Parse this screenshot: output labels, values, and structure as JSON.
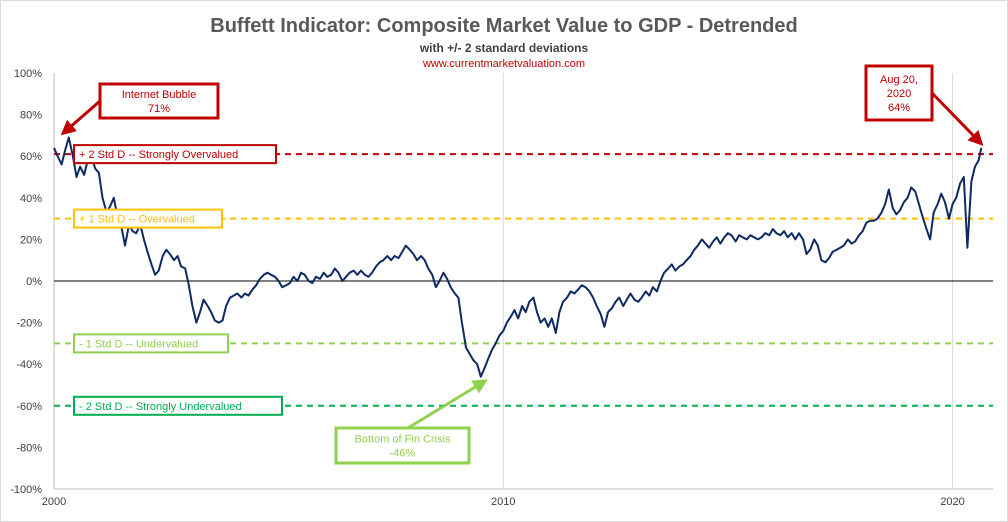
{
  "chart_data": {
    "type": "line",
    "title": "Buffett Indicator: Composite Market Value to GDP - Detrended",
    "subtitle": "with +/- 2 standard deviations",
    "source": "www.currentmarketvaluation.com",
    "xlabel": "",
    "ylabel": "",
    "xlim": [
      2000,
      2020.9
    ],
    "ylim": [
      -100,
      100
    ],
    "x_ticks": [
      2000,
      2010,
      2020
    ],
    "x_tick_labels": [
      "2000",
      "2010",
      "2020"
    ],
    "y_ticks": [
      -100,
      -80,
      -60,
      -40,
      -20,
      0,
      20,
      40,
      60,
      80,
      100
    ],
    "y_tick_labels": [
      "-100%",
      "-80%",
      "-60%",
      "-40%",
      "-20%",
      "0%",
      "20%",
      "40%",
      "60%",
      "80%",
      "100%"
    ],
    "grid": "vertical",
    "colors": {
      "series": "#0f2a62",
      "plus2": "#c00000",
      "plus1": "#ffc000",
      "minus1": "#92d050",
      "minus2": "#00b050",
      "zero": "#000000",
      "title": "#595959",
      "source": "#c00000"
    },
    "series": [
      {
        "values": [
          [
            2000.0,
            64
          ],
          [
            2000.08,
            60
          ],
          [
            2000.17,
            56
          ],
          [
            2000.25,
            63
          ],
          [
            2000.33,
            69
          ],
          [
            2000.42,
            60
          ],
          [
            2000.5,
            50
          ],
          [
            2000.58,
            55
          ],
          [
            2000.67,
            51
          ],
          [
            2000.75,
            58
          ],
          [
            2000.83,
            60
          ],
          [
            2000.92,
            54
          ],
          [
            2001.0,
            52
          ],
          [
            2001.08,
            40
          ],
          [
            2001.17,
            33
          ],
          [
            2001.25,
            36
          ],
          [
            2001.33,
            40
          ],
          [
            2001.42,
            30
          ],
          [
            2001.5,
            26
          ],
          [
            2001.58,
            17
          ],
          [
            2001.67,
            27
          ],
          [
            2001.75,
            24
          ],
          [
            2001.83,
            23
          ],
          [
            2001.92,
            27
          ],
          [
            2002.0,
            20
          ],
          [
            2002.08,
            14
          ],
          [
            2002.17,
            8
          ],
          [
            2002.25,
            3
          ],
          [
            2002.33,
            5
          ],
          [
            2002.42,
            12
          ],
          [
            2002.5,
            15
          ],
          [
            2002.58,
            13
          ],
          [
            2002.67,
            10
          ],
          [
            2002.75,
            12
          ],
          [
            2002.83,
            7
          ],
          [
            2002.92,
            6
          ],
          [
            2003.0,
            -2
          ],
          [
            2003.08,
            -12
          ],
          [
            2003.17,
            -20
          ],
          [
            2003.25,
            -15
          ],
          [
            2003.33,
            -9
          ],
          [
            2003.42,
            -12
          ],
          [
            2003.5,
            -15
          ],
          [
            2003.58,
            -19
          ],
          [
            2003.67,
            -20
          ],
          [
            2003.75,
            -19
          ],
          [
            2003.83,
            -12
          ],
          [
            2003.92,
            -8
          ],
          [
            2004.0,
            -7
          ],
          [
            2004.08,
            -6
          ],
          [
            2004.17,
            -8
          ],
          [
            2004.25,
            -6
          ],
          [
            2004.33,
            -7
          ],
          [
            2004.42,
            -4
          ],
          [
            2004.5,
            -2
          ],
          [
            2004.58,
            1
          ],
          [
            2004.67,
            3
          ],
          [
            2004.75,
            4
          ],
          [
            2004.83,
            3
          ],
          [
            2004.92,
            2
          ],
          [
            2005.0,
            0
          ],
          [
            2005.08,
            -3
          ],
          [
            2005.17,
            -2
          ],
          [
            2005.25,
            -1
          ],
          [
            2005.33,
            2
          ],
          [
            2005.42,
            0
          ],
          [
            2005.5,
            4
          ],
          [
            2005.58,
            3
          ],
          [
            2005.67,
            0
          ],
          [
            2005.75,
            -1
          ],
          [
            2005.83,
            2
          ],
          [
            2005.92,
            1
          ],
          [
            2006.0,
            4
          ],
          [
            2006.08,
            2
          ],
          [
            2006.17,
            3
          ],
          [
            2006.25,
            6
          ],
          [
            2006.33,
            4
          ],
          [
            2006.42,
            0
          ],
          [
            2006.5,
            2
          ],
          [
            2006.58,
            4
          ],
          [
            2006.67,
            5
          ],
          [
            2006.75,
            3
          ],
          [
            2006.83,
            5
          ],
          [
            2006.92,
            3
          ],
          [
            2007.0,
            2
          ],
          [
            2007.08,
            4
          ],
          [
            2007.17,
            7
          ],
          [
            2007.25,
            9
          ],
          [
            2007.33,
            10
          ],
          [
            2007.42,
            12
          ],
          [
            2007.5,
            10
          ],
          [
            2007.58,
            12
          ],
          [
            2007.67,
            11
          ],
          [
            2007.75,
            14
          ],
          [
            2007.83,
            17
          ],
          [
            2007.92,
            15
          ],
          [
            2008.0,
            13
          ],
          [
            2008.08,
            10
          ],
          [
            2008.17,
            12
          ],
          [
            2008.25,
            10
          ],
          [
            2008.33,
            6
          ],
          [
            2008.42,
            3
          ],
          [
            2008.5,
            -3
          ],
          [
            2008.58,
            0
          ],
          [
            2008.67,
            4
          ],
          [
            2008.75,
            1
          ],
          [
            2008.83,
            -3
          ],
          [
            2008.92,
            -6
          ],
          [
            2009.0,
            -8
          ],
          [
            2009.08,
            -20
          ],
          [
            2009.17,
            -32
          ],
          [
            2009.25,
            -35
          ],
          [
            2009.33,
            -38
          ],
          [
            2009.42,
            -40
          ],
          [
            2009.5,
            -46
          ],
          [
            2009.58,
            -42
          ],
          [
            2009.67,
            -37
          ],
          [
            2009.75,
            -33
          ],
          [
            2009.83,
            -30
          ],
          [
            2009.92,
            -26
          ],
          [
            2010.0,
            -24
          ],
          [
            2010.08,
            -20
          ],
          [
            2010.17,
            -17
          ],
          [
            2010.25,
            -14
          ],
          [
            2010.33,
            -18
          ],
          [
            2010.42,
            -12
          ],
          [
            2010.5,
            -15
          ],
          [
            2010.58,
            -10
          ],
          [
            2010.67,
            -8
          ],
          [
            2010.75,
            -15
          ],
          [
            2010.83,
            -20
          ],
          [
            2010.92,
            -18
          ],
          [
            2011.0,
            -22
          ],
          [
            2011.08,
            -18
          ],
          [
            2011.17,
            -25
          ],
          [
            2011.25,
            -15
          ],
          [
            2011.33,
            -10
          ],
          [
            2011.42,
            -8
          ],
          [
            2011.5,
            -5
          ],
          [
            2011.58,
            -6
          ],
          [
            2011.67,
            -4
          ],
          [
            2011.75,
            -2
          ],
          [
            2011.83,
            -3
          ],
          [
            2011.92,
            -5
          ],
          [
            2012.0,
            -8
          ],
          [
            2012.08,
            -12
          ],
          [
            2012.17,
            -16
          ],
          [
            2012.25,
            -22
          ],
          [
            2012.33,
            -15
          ],
          [
            2012.42,
            -13
          ],
          [
            2012.5,
            -10
          ],
          [
            2012.58,
            -8
          ],
          [
            2012.67,
            -12
          ],
          [
            2012.75,
            -9
          ],
          [
            2012.83,
            -6
          ],
          [
            2012.92,
            -9
          ],
          [
            2013.0,
            -10
          ],
          [
            2013.08,
            -8
          ],
          [
            2013.17,
            -5
          ],
          [
            2013.25,
            -7
          ],
          [
            2013.33,
            -3
          ],
          [
            2013.42,
            -5
          ],
          [
            2013.5,
            0
          ],
          [
            2013.58,
            4
          ],
          [
            2013.67,
            6
          ],
          [
            2013.75,
            8
          ],
          [
            2013.83,
            5
          ],
          [
            2013.92,
            7
          ],
          [
            2014.0,
            8
          ],
          [
            2014.08,
            10
          ],
          [
            2014.17,
            12
          ],
          [
            2014.25,
            15
          ],
          [
            2014.33,
            17
          ],
          [
            2014.42,
            20
          ],
          [
            2014.5,
            18
          ],
          [
            2014.58,
            16
          ],
          [
            2014.67,
            19
          ],
          [
            2014.75,
            21
          ],
          [
            2014.83,
            18
          ],
          [
            2014.92,
            21
          ],
          [
            2015.0,
            23
          ],
          [
            2015.08,
            22
          ],
          [
            2015.17,
            19
          ],
          [
            2015.25,
            22
          ],
          [
            2015.33,
            21
          ],
          [
            2015.42,
            20
          ],
          [
            2015.5,
            22
          ],
          [
            2015.58,
            21
          ],
          [
            2015.67,
            20
          ],
          [
            2015.75,
            21
          ],
          [
            2015.83,
            23
          ],
          [
            2015.92,
            22
          ],
          [
            2016.0,
            25
          ],
          [
            2016.08,
            23
          ],
          [
            2016.17,
            22
          ],
          [
            2016.25,
            24
          ],
          [
            2016.33,
            21
          ],
          [
            2016.42,
            23
          ],
          [
            2016.5,
            20
          ],
          [
            2016.58,
            23
          ],
          [
            2016.67,
            20
          ],
          [
            2016.75,
            13
          ],
          [
            2016.83,
            15
          ],
          [
            2016.92,
            20
          ],
          [
            2017.0,
            17
          ],
          [
            2017.08,
            10
          ],
          [
            2017.17,
            9
          ],
          [
            2017.25,
            11
          ],
          [
            2017.33,
            14
          ],
          [
            2017.42,
            15
          ],
          [
            2017.5,
            16
          ],
          [
            2017.58,
            17
          ],
          [
            2017.67,
            20
          ],
          [
            2017.75,
            18
          ],
          [
            2017.83,
            19
          ],
          [
            2017.92,
            22
          ],
          [
            2018.0,
            24
          ],
          [
            2018.08,
            28
          ],
          [
            2018.17,
            29
          ],
          [
            2018.25,
            29
          ],
          [
            2018.33,
            30
          ],
          [
            2018.42,
            33
          ],
          [
            2018.5,
            37
          ],
          [
            2018.58,
            44
          ],
          [
            2018.67,
            35
          ],
          [
            2018.75,
            32
          ],
          [
            2018.83,
            34
          ],
          [
            2018.92,
            38
          ],
          [
            2019.0,
            40
          ],
          [
            2019.08,
            45
          ],
          [
            2019.17,
            43
          ],
          [
            2019.25,
            37
          ],
          [
            2019.33,
            31
          ],
          [
            2019.42,
            25
          ],
          [
            2019.5,
            20
          ],
          [
            2019.58,
            33
          ],
          [
            2019.67,
            37
          ],
          [
            2019.75,
            42
          ],
          [
            2019.83,
            38
          ],
          [
            2019.92,
            30
          ],
          [
            2020.0,
            37
          ],
          [
            2020.08,
            40
          ],
          [
            2020.17,
            47
          ],
          [
            2020.25,
            50
          ],
          [
            2020.33,
            16
          ],
          [
            2020.42,
            48
          ],
          [
            2020.5,
            55
          ],
          [
            2020.58,
            58
          ],
          [
            2020.64,
            64
          ]
        ]
      }
    ],
    "reference_lines": [
      {
        "y": 61,
        "label": "+ 2 Std D -- Strongly Overvalued",
        "color": "#c00000",
        "style": "dashed"
      },
      {
        "y": 30,
        "label": "+ 1 Std D -- Overvalued",
        "color": "#ffc000",
        "style": "dashed"
      },
      {
        "y": 0,
        "label": "",
        "color": "#000000",
        "style": "solid"
      },
      {
        "y": -30,
        "label": "- 1 Std D -- Undervalued",
        "color": "#92d050",
        "style": "dashed"
      },
      {
        "y": -60,
        "label": "- 2 Std D -- Strongly Undervalued",
        "color": "#00b050",
        "style": "dashed"
      }
    ],
    "annotations": [
      {
        "lines": [
          "Internet Bubble",
          "71%"
        ],
        "target": [
          2000.2,
          71
        ],
        "color": "#c00000"
      },
      {
        "lines": [
          "Bottom of Fin Crisis",
          "-46%"
        ],
        "target": [
          2009.6,
          -48
        ],
        "color": "#92d050"
      },
      {
        "lines": [
          "Aug 20,",
          "2020",
          "64%"
        ],
        "target": [
          2020.64,
          66
        ],
        "color": "#c00000"
      }
    ]
  }
}
